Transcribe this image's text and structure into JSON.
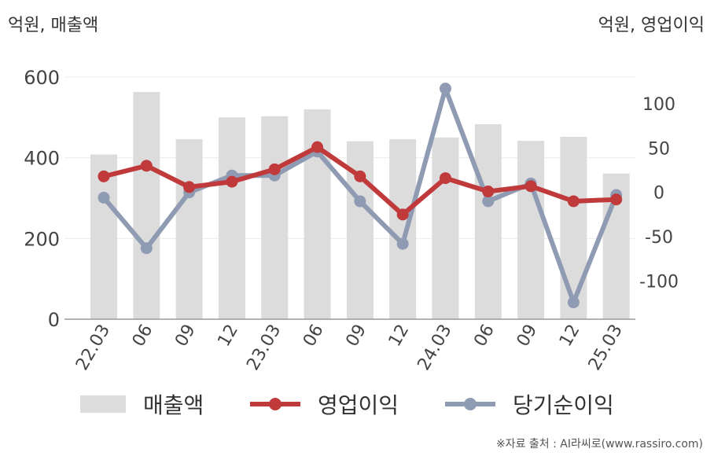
{
  "left_unit_label": "억원, 매출액",
  "right_unit_label": "억원, 영업이익",
  "source_note": "※자료 출처 : AI라씨로(www.rassiro.com)",
  "chart_data": {
    "type": "bar",
    "categories": [
      "22.03",
      "06",
      "09",
      "12",
      "23.03",
      "06",
      "09",
      "12",
      "24.03",
      "06",
      "09",
      "12",
      "25.03"
    ],
    "y_left": {
      "ylim": [
        0,
        600
      ],
      "ticks": [
        0,
        200,
        400,
        600
      ]
    },
    "y_right": {
      "ylim": [
        -143,
        130
      ],
      "ticks": [
        -100,
        -50,
        0,
        50,
        100
      ]
    },
    "grid": true,
    "legend_position": "bottom",
    "series": [
      {
        "name": "매출액",
        "type": "bar",
        "axis": "left",
        "color": "#dcdcdc",
        "values": [
          408,
          563,
          446,
          500,
          503,
          520,
          441,
          446,
          450,
          483,
          442,
          452,
          361
        ]
      },
      {
        "name": "영업이익",
        "type": "line",
        "axis": "right",
        "color": "#c0393b",
        "values": [
          18,
          30,
          6,
          12,
          26,
          51,
          18,
          -25,
          16,
          1,
          7,
          -10,
          -8
        ]
      },
      {
        "name": "당기순이익",
        "type": "line",
        "axis": "right",
        "color": "#8f9bb3",
        "values": [
          -6,
          -63,
          0,
          19,
          19,
          46,
          -10,
          -58,
          117,
          -10,
          10,
          -124,
          -3
        ]
      }
    ]
  }
}
